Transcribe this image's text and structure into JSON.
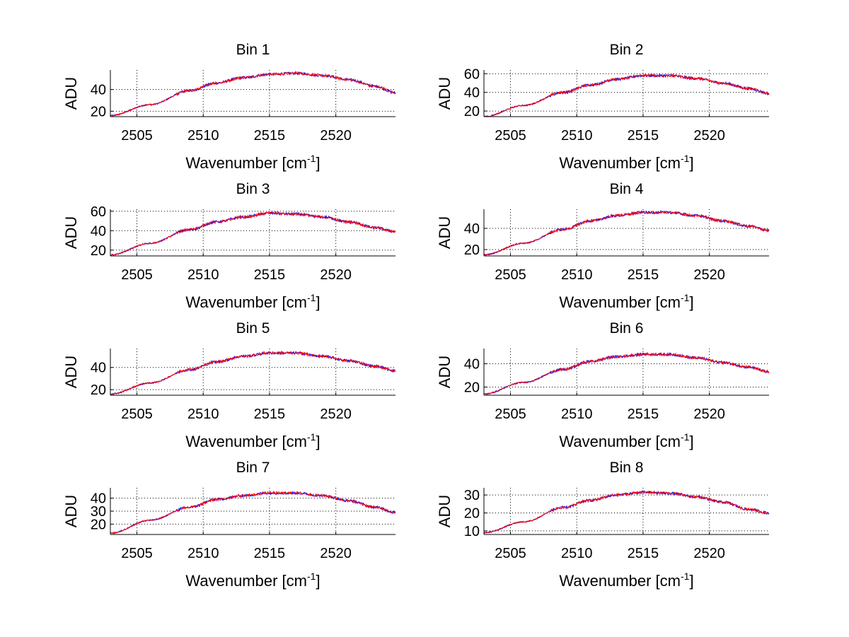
{
  "colors": {
    "series_a": "#0000ff",
    "series_b": "#ff0000",
    "grid": "#000000",
    "axes": "#000000"
  },
  "chart_data": [
    {
      "type": "line",
      "title": "Bin 1",
      "ylabel": "ADU",
      "xlabel": "Wavenumber [cm",
      "xlabel_sup": "-1",
      "xlabel_end": "]",
      "xlim": [
        2503,
        2524.5
      ],
      "ylim": [
        15,
        58
      ],
      "xticks": [
        "2505",
        "2510",
        "2515",
        "2520"
      ],
      "yticks": [
        "20",
        "40"
      ],
      "grid": true,
      "shape": {
        "x": [
          2503,
          2506,
          2509,
          2511,
          2513,
          2515,
          2517,
          2519,
          2521,
          2523,
          2524.5
        ],
        "y": [
          16,
          26,
          39,
          46,
          51,
          54,
          55,
          53,
          49,
          43,
          37
        ]
      },
      "series": [
        {
          "color": "#0000ff"
        },
        {
          "color": "#ff0000"
        }
      ]
    },
    {
      "type": "line",
      "title": "Bin 2",
      "ylabel": "ADU",
      "xlabel": "Wavenumber [cm",
      "xlabel_sup": "-1",
      "xlabel_end": "]",
      "xlim": [
        2503,
        2524.5
      ],
      "ylim": [
        14,
        64
      ],
      "xticks": [
        "2505",
        "2510",
        "2515",
        "2520"
      ],
      "yticks": [
        "20",
        "40",
        "60"
      ],
      "grid": true,
      "shape": {
        "x": [
          2503,
          2506,
          2509,
          2511,
          2513,
          2515,
          2517,
          2519,
          2521,
          2523,
          2524.5
        ],
        "y": [
          14,
          26,
          40,
          48,
          54,
          58,
          58,
          55,
          50,
          44,
          39
        ]
      },
      "series": [
        {
          "color": "#0000ff"
        },
        {
          "color": "#ff0000"
        }
      ]
    },
    {
      "type": "line",
      "title": "Bin 3",
      "ylabel": "ADU",
      "xlabel": "Wavenumber [cm",
      "xlabel_sup": "-1",
      "xlabel_end": "]",
      "xlim": [
        2503,
        2524.5
      ],
      "ylim": [
        14,
        62
      ],
      "xticks": [
        "2505",
        "2510",
        "2515",
        "2520"
      ],
      "yticks": [
        "20",
        "40",
        "60"
      ],
      "grid": true,
      "shape": {
        "x": [
          2503,
          2506,
          2509,
          2511,
          2513,
          2515,
          2517,
          2519,
          2521,
          2523,
          2524.5
        ],
        "y": [
          15,
          27,
          41,
          49,
          54,
          58,
          57,
          54,
          49,
          43,
          39
        ]
      },
      "series": [
        {
          "color": "#0000ff"
        },
        {
          "color": "#ff0000"
        }
      ]
    },
    {
      "type": "line",
      "title": "Bin 4",
      "ylabel": "ADU",
      "xlabel": "Wavenumber [cm",
      "xlabel_sup": "-1",
      "xlabel_end": "]",
      "xlim": [
        2503,
        2524.5
      ],
      "ylim": [
        14,
        58
      ],
      "xticks": [
        "2505",
        "2510",
        "2515",
        "2520"
      ],
      "yticks": [
        "20",
        "40"
      ],
      "grid": true,
      "shape": {
        "x": [
          2503,
          2506,
          2509,
          2511,
          2513,
          2515,
          2517,
          2519,
          2521,
          2523,
          2524.5
        ],
        "y": [
          15,
          26,
          39,
          47,
          52,
          55,
          55,
          52,
          47,
          42,
          38
        ]
      },
      "series": [
        {
          "color": "#0000ff"
        },
        {
          "color": "#ff0000"
        }
      ]
    },
    {
      "type": "line",
      "title": "Bin 5",
      "ylabel": "ADU",
      "xlabel": "Wavenumber [cm",
      "xlabel_sup": "-1",
      "xlabel_end": "]",
      "xlim": [
        2503,
        2524.5
      ],
      "ylim": [
        15,
        57
      ],
      "xticks": [
        "2505",
        "2510",
        "2515",
        "2520"
      ],
      "yticks": [
        "20",
        "40"
      ],
      "grid": true,
      "shape": {
        "x": [
          2503,
          2506,
          2509,
          2511,
          2513,
          2515,
          2517,
          2519,
          2521,
          2523,
          2524.5
        ],
        "y": [
          16,
          26,
          38,
          45,
          50,
          53,
          53,
          50,
          46,
          41,
          37
        ]
      },
      "series": [
        {
          "color": "#0000ff"
        },
        {
          "color": "#ff0000"
        }
      ]
    },
    {
      "type": "line",
      "title": "Bin 6",
      "ylabel": "ADU",
      "xlabel": "Wavenumber [cm",
      "xlabel_sup": "-1",
      "xlabel_end": "]",
      "xlim": [
        2503,
        2524.5
      ],
      "ylim": [
        13,
        53
      ],
      "xticks": [
        "2505",
        "2510",
        "2515",
        "2520"
      ],
      "yticks": [
        "20",
        "40"
      ],
      "grid": true,
      "shape": {
        "x": [
          2503,
          2506,
          2509,
          2511,
          2513,
          2515,
          2517,
          2519,
          2521,
          2523,
          2524.5
        ],
        "y": [
          14,
          24,
          35,
          42,
          46,
          48,
          48,
          45,
          41,
          37,
          33
        ]
      },
      "series": [
        {
          "color": "#0000ff"
        },
        {
          "color": "#ff0000"
        }
      ]
    },
    {
      "type": "line",
      "title": "Bin 7",
      "ylabel": "ADU",
      "xlabel": "Wavenumber [cm",
      "xlabel_sup": "-1",
      "xlabel_end": "]",
      "xlim": [
        2503,
        2524.5
      ],
      "ylim": [
        12,
        48
      ],
      "xticks": [
        "2505",
        "2510",
        "2515",
        "2520"
      ],
      "yticks": [
        "20",
        "30",
        "40"
      ],
      "grid": true,
      "shape": {
        "x": [
          2503,
          2506,
          2509,
          2511,
          2513,
          2515,
          2517,
          2519,
          2521,
          2523,
          2524.5
        ],
        "y": [
          13,
          23,
          33,
          39,
          42,
          44,
          44,
          42,
          38,
          33,
          29
        ]
      },
      "series": [
        {
          "color": "#0000ff"
        },
        {
          "color": "#ff0000"
        }
      ]
    },
    {
      "type": "line",
      "title": "Bin 8",
      "ylabel": "ADU",
      "xlabel": "Wavenumber [cm",
      "xlabel_sup": "-1",
      "xlabel_end": "]",
      "xlim": [
        2503,
        2524.5
      ],
      "ylim": [
        8,
        34
      ],
      "xticks": [
        "2505",
        "2510",
        "2515",
        "2520"
      ],
      "yticks": [
        "10",
        "20",
        "30"
      ],
      "grid": true,
      "shape": {
        "x": [
          2503,
          2506,
          2509,
          2511,
          2513,
          2515,
          2517,
          2519,
          2521,
          2523,
          2524.5
        ],
        "y": [
          9,
          15,
          23,
          27,
          30,
          31.5,
          31,
          29,
          26,
          22,
          20
        ]
      },
      "series": [
        {
          "color": "#0000ff"
        },
        {
          "color": "#ff0000"
        }
      ]
    }
  ]
}
